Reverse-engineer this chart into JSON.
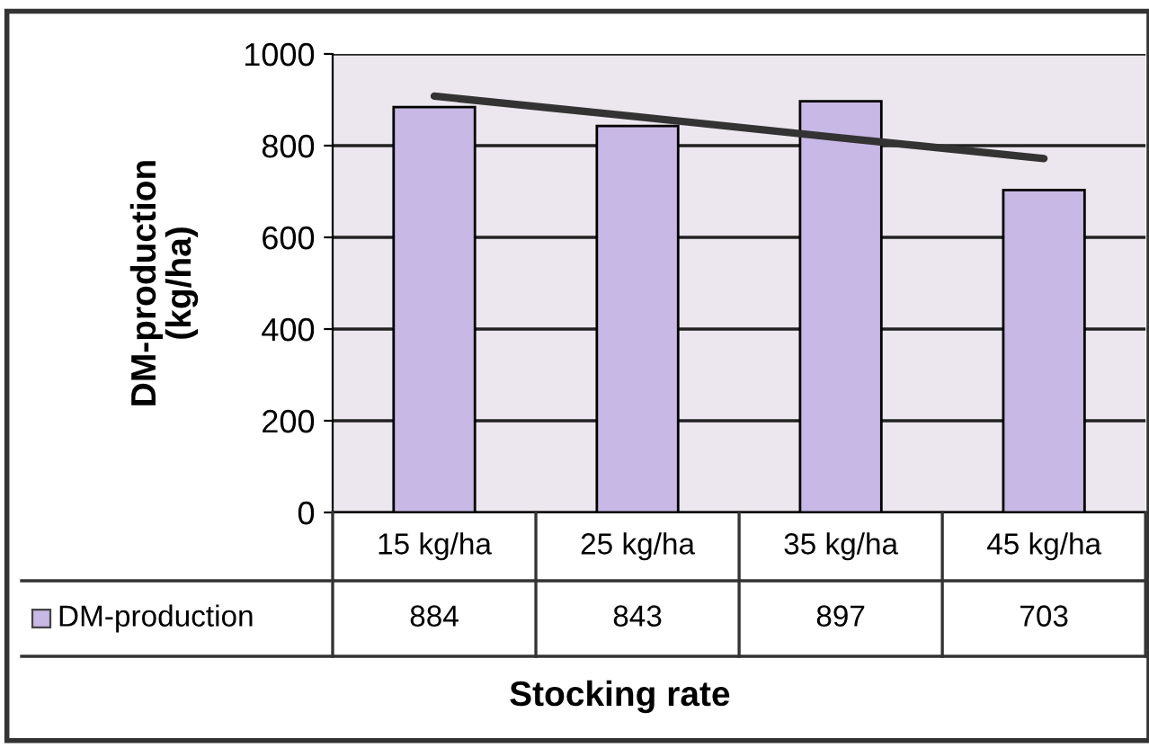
{
  "chart_data": {
    "type": "bar",
    "xlabel": "Stocking rate",
    "ylabel": "DM-production\n(kg/ha)",
    "categories": [
      "15 kg/ha",
      "25 kg/ha",
      "35 kg/ha",
      "45 kg/ha"
    ],
    "series": [
      {
        "name": "DM-production",
        "color": "#c8b8e6",
        "values": [
          884,
          843,
          897,
          703
        ],
        "value_labels": [
          "884",
          "843",
          "897",
          "703"
        ]
      },
      {
        "type": "line",
        "color": "#333333",
        "values": [
          908,
          863,
          817,
          772
        ]
      }
    ],
    "ylim": [
      0,
      1000
    ],
    "yticks": [
      0,
      200,
      400,
      600,
      800,
      1000
    ],
    "grid": "y",
    "legend": "bottom"
  }
}
